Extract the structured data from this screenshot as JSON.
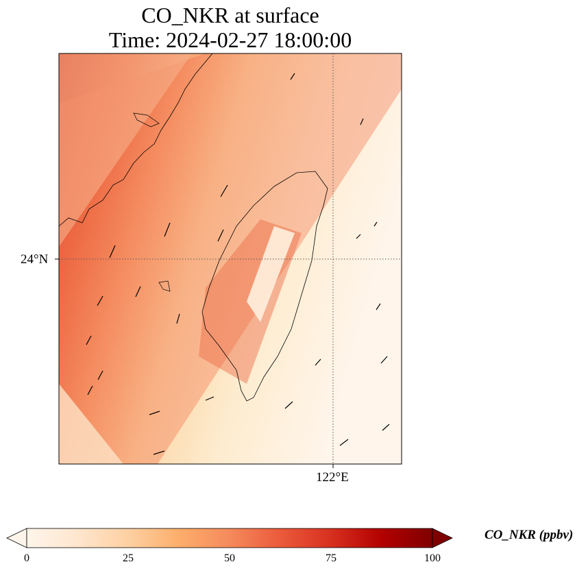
{
  "title": {
    "line1": "CO_NKR at surface",
    "line2": "Time: 2024-02-27 18:00:00"
  },
  "map": {
    "lat_label": "24°N",
    "lon_label": "122°E",
    "gridline_style": "dotted",
    "vectors": "wind arrows"
  },
  "colorbar": {
    "label": "CO_NKR (ppbv)",
    "ticks": [
      "0",
      "25",
      "50",
      "75",
      "100"
    ],
    "colormap": [
      "#fff5eb",
      "#fee6ce",
      "#fdd0a2",
      "#fdae6b",
      "#fd8d3c",
      "#f16913",
      "#d94801",
      "#a63603",
      "#7f2704"
    ],
    "extend": "both"
  }
}
